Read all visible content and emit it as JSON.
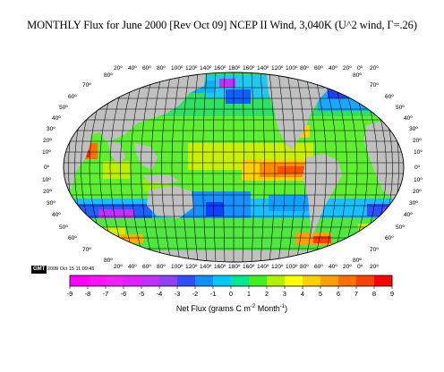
{
  "title": "MONTHLY Flux for June 2000 [Rev Oct 09] NCEP II Wind, 3,040K (U^2 wind, Γ=.26)",
  "stamp": {
    "badge": "GMT",
    "timestamp": "2009 Oct 15 11:09:45"
  },
  "lon_labels": [
    "20º",
    "40º",
    "60º",
    "80º",
    "100º",
    "120º",
    "140º",
    "160º",
    "180º",
    "160º",
    "140º",
    "120º",
    "100º",
    "80º",
    "60º",
    "40º",
    "20º",
    "0º",
    "20º"
  ],
  "lat_labels": [
    "80º",
    "70º",
    "60º",
    "50º",
    "40º",
    "30º",
    "20º",
    "10º",
    "0º",
    "10º",
    "20º",
    "30º",
    "40º",
    "50º",
    "60º",
    "70º",
    "80º"
  ],
  "colorbar": {
    "ticks": [
      "-9",
      "-8",
      "-7",
      "-6",
      "-5",
      "-4",
      "-3",
      "-2",
      "-1",
      "0",
      "1",
      "2",
      "3",
      "4",
      "5",
      "6",
      "7",
      "8",
      "9"
    ],
    "colors": [
      "#ff00ff",
      "#ff10ff",
      "#f020ff",
      "#e020ff",
      "#c030ff",
      "#9040ff",
      "#3050ff",
      "#1090ff",
      "#00c8ff",
      "#00e890",
      "#40f020",
      "#b0f000",
      "#ffff00",
      "#ffd000",
      "#ffa000",
      "#ff7000",
      "#ff4000",
      "#ff0000"
    ],
    "label": "Net Flux (grams C m",
    "label_sup1": "-2",
    "label_mid": " Month",
    "label_sup2": "-1",
    "label_end": ")"
  }
}
